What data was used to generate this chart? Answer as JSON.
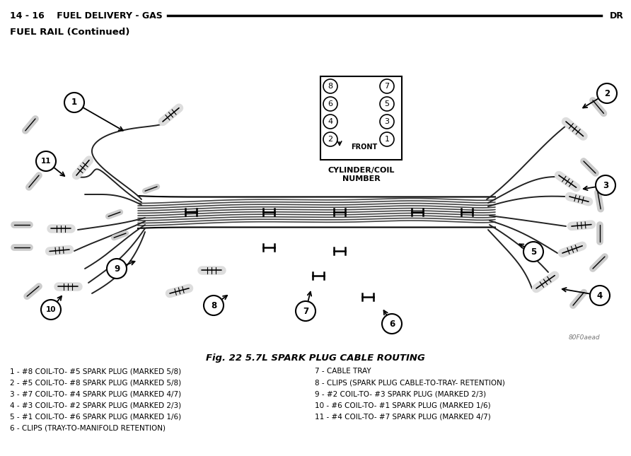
{
  "bg_color": "#ffffff",
  "header_line_left": "14 - 16    FUEL DELIVERY - GAS",
  "header_line_right": "DR",
  "subtitle": "FUEL RAIL (Continued)",
  "fig_caption": "Fig. 22 5.7L SPARK PLUG CABLE ROUTING",
  "legend_left": [
    "1 - #8 COIL-TO- #5 SPARK PLUG (MARKED 5/8)",
    "2 - #5 COIL-TO- #8 SPARK PLUG (MARKED 5/8)",
    "3 - #7 COIL-TO- #4 SPARK PLUG (MARKED 4/7)",
    "4 - #3 COIL-TO- #2 SPARK PLUG (MARKED 2/3)",
    "5 - #1 COIL-TO- #6 SPARK PLUG (MARKED 1/6)",
    "6 - CLIPS (TRAY-TO-MANIFOLD RETENTION)"
  ],
  "legend_right": [
    "7 - CABLE TRAY",
    "8 - CLIPS (SPARK PLUG CABLE-TO-TRAY- RETENTION)",
    "9 - #2 COIL-TO- #3 SPARK PLUG (MARKED 2/3)",
    "10 - #6 COIL-TO- #1 SPARK PLUG (MARKED 1/6)",
    "11 - #4 COIL-TO- #7 SPARK PLUG (MARKED 4/7)"
  ],
  "watermark": "80F0aead",
  "cylinder_numbers": [
    [
      "8",
      "7"
    ],
    [
      "6",
      "5"
    ],
    [
      "4",
      "3"
    ],
    [
      "2",
      "1"
    ]
  ],
  "cylinder_label": "CYLINDER/COIL\nNUMBER",
  "front_label": "FRONT"
}
